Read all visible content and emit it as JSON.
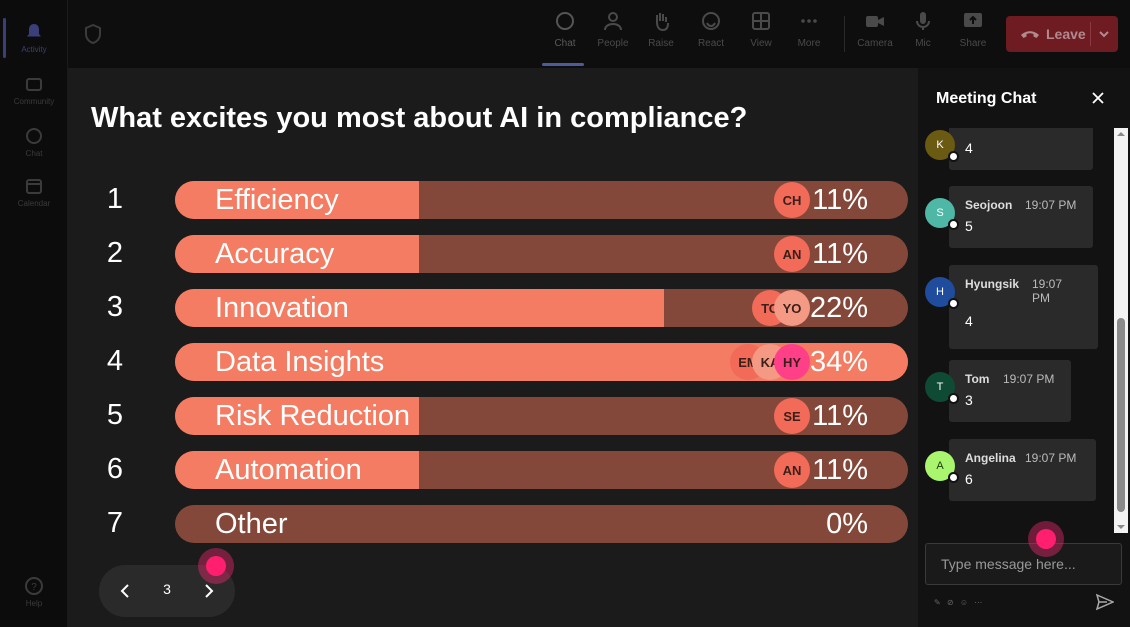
{
  "rail": {
    "items": [
      {
        "label": "Activity",
        "icon": "bell-icon"
      },
      {
        "label": "Community",
        "icon": "community-icon"
      },
      {
        "label": "Chat",
        "icon": "chat-icon"
      },
      {
        "label": "Calendar",
        "icon": "calendar-icon"
      },
      {
        "label": "Help",
        "icon": "help-icon"
      }
    ]
  },
  "toolbar": {
    "buttons": [
      {
        "label": "Chat",
        "icon": "chat-icon"
      },
      {
        "label": "People",
        "icon": "people-icon"
      },
      {
        "label": "Raise",
        "icon": "hand-icon"
      },
      {
        "label": "React",
        "icon": "smile-icon"
      },
      {
        "label": "View",
        "icon": "grid-icon"
      },
      {
        "label": "More",
        "icon": "more-icon"
      },
      {
        "label": "Camera",
        "icon": "camera-icon"
      },
      {
        "label": "Mic",
        "icon": "mic-icon"
      },
      {
        "label": "Share",
        "icon": "share-icon"
      }
    ],
    "leave_label": "Leave"
  },
  "poll": {
    "question": "What excites you most about AI in compliance?",
    "options": [
      {
        "num": "1",
        "label": "Efficiency",
        "percent_text": "11%",
        "fraction": 0.333,
        "avatars": [
          "CH"
        ]
      },
      {
        "num": "2",
        "label": "Accuracy",
        "percent_text": "11%",
        "fraction": 0.333,
        "avatars": [
          "AN"
        ]
      },
      {
        "num": "3",
        "label": "Innovation",
        "percent_text": "22%",
        "fraction": 0.667,
        "avatars": [
          "TO",
          "YO"
        ]
      },
      {
        "num": "4",
        "label": "Data Insights",
        "percent_text": "34%",
        "fraction": 1.0,
        "avatars": [
          "EM",
          "KA",
          "HY"
        ]
      },
      {
        "num": "5",
        "label": "Risk Reduction",
        "percent_text": "11%",
        "fraction": 0.333,
        "avatars": [
          "SE"
        ]
      },
      {
        "num": "6",
        "label": "Automation",
        "percent_text": "11%",
        "fraction": 0.333,
        "avatars": [
          "AN"
        ]
      },
      {
        "num": "7",
        "label": "Other",
        "percent_text": "0%",
        "fraction": 0.0,
        "avatars": []
      }
    ],
    "page": "3"
  },
  "colors": {
    "bar_fill": "#f47c62",
    "bar_track": "#84483a",
    "leave": "#6e1b22",
    "accent": "#ff1f6e"
  },
  "chat": {
    "title": "Meeting Chat",
    "messages": [
      {
        "initial": "K",
        "name": "",
        "time": "",
        "text": "4",
        "avatar_color": "#6b5a12"
      },
      {
        "initial": "S",
        "name": "Seojoon",
        "time": "19:07 PM",
        "text": "5",
        "avatar_color": "#4fb7a5"
      },
      {
        "initial": "H",
        "name": "Hyungsik",
        "time": "19:07 PM",
        "text": "4",
        "avatar_color": "#1f4c9c"
      },
      {
        "initial": "T",
        "name": "Tom",
        "time": "19:07 PM",
        "text": "3",
        "avatar_color": "#0f4a34"
      },
      {
        "initial": "A",
        "name": "Angelina",
        "time": "19:07 PM",
        "text": "6",
        "avatar_color": "#a9f56d"
      }
    ],
    "input_placeholder": "Type message here..."
  }
}
